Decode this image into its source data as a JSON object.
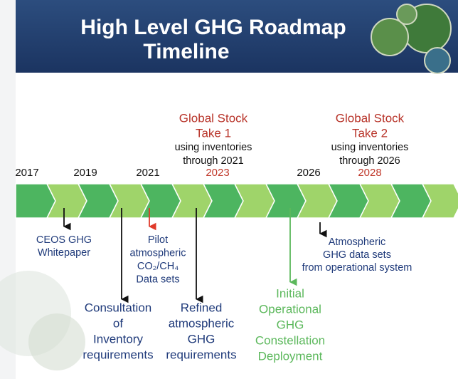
{
  "header": {
    "title_lines": [
      "High Level GHG Roadmap",
      "Timeline"
    ]
  },
  "timeline": {
    "years": [
      {
        "label": "2017",
        "color": "#111111"
      },
      {
        "label": "2019",
        "color": "#111111"
      },
      {
        "label": "2021",
        "color": "#111111"
      },
      {
        "label": "2023",
        "color": "#c0392b"
      },
      {
        "label": "2026",
        "color": "#111111"
      },
      {
        "label": "2028",
        "color": "#c0392b"
      }
    ]
  },
  "stocktakes": [
    {
      "title_lines": [
        "Global Stock",
        "Take 1"
      ],
      "note_lines": [
        "using inventories",
        "through 2021"
      ]
    },
    {
      "title_lines": [
        "Global Stock",
        "Take 2"
      ],
      "note_lines": [
        "using inventories",
        "through 2026"
      ]
    }
  ],
  "events": [
    {
      "lines": [
        "CEOS GHG",
        "Whitepaper"
      ],
      "color": "#1f3a7a",
      "arrow_color": "#111111"
    },
    {
      "lines": [
        "Pilot",
        "atmospheric",
        "CO₂/CH₄",
        "Data sets"
      ],
      "color": "#1f3a7a",
      "arrow_color": "#e03a2a"
    },
    {
      "lines": [
        "Consultation",
        "of",
        "Inventory",
        "requirements"
      ],
      "color": "#1f3a7a",
      "arrow_color": "#111111"
    },
    {
      "lines": [
        "Refined",
        "atmospheric",
        "GHG",
        "requirements"
      ],
      "color": "#1f3a7a",
      "arrow_color": "#111111"
    },
    {
      "lines": [
        "Initial",
        "Operational",
        "GHG",
        "Constellation",
        "Deployment"
      ],
      "color": "#5cb85c",
      "arrow_color": "#5cb85c"
    },
    {
      "lines": [
        "Atmospheric",
        "GHG data sets",
        "from operational system"
      ],
      "color": "#1f3a7a",
      "arrow_color": "#111111"
    }
  ]
}
